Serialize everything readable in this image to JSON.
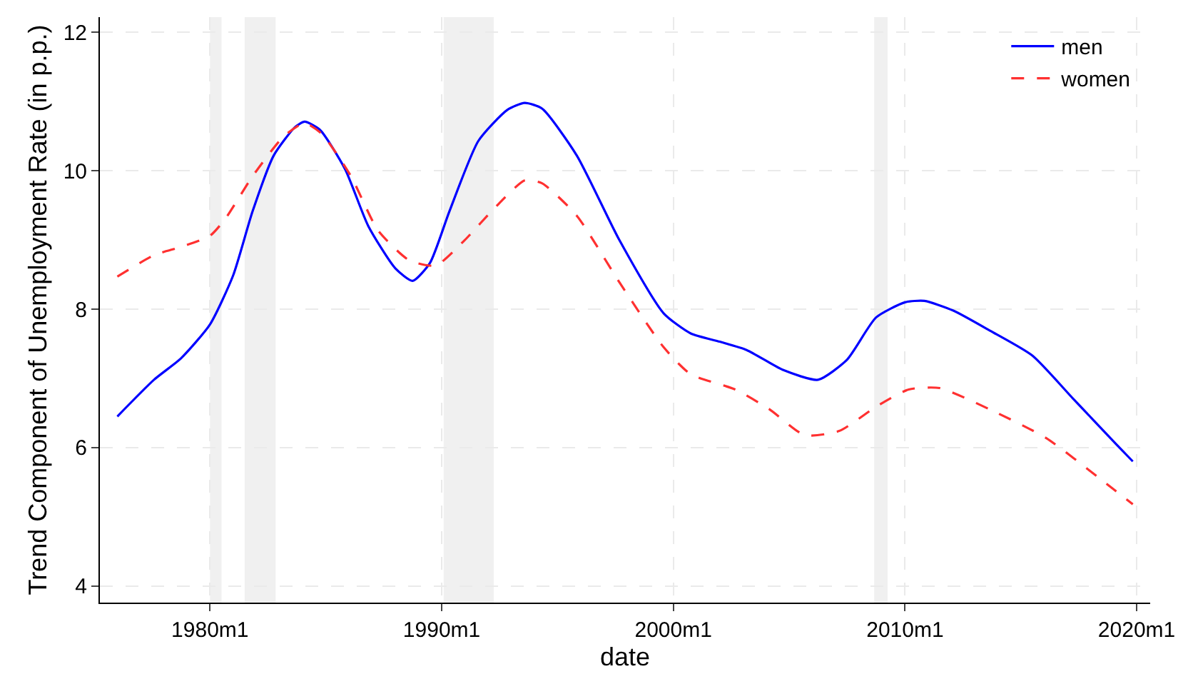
{
  "chart_data": {
    "type": "line",
    "xlabel": "date",
    "ylabel": "Trend Component of Unemployment Rate (in p.p.)",
    "xlim": [
      "1975-04",
      "2020-08"
    ],
    "ylim": [
      3.76,
      12.22
    ],
    "xticks": [
      {
        "value": "1980-01",
        "label": "1980m1"
      },
      {
        "value": "1990-01",
        "label": "1990m1"
      },
      {
        "value": "2000-01",
        "label": "2000m1"
      },
      {
        "value": "2010-01",
        "label": "2010m1"
      },
      {
        "value": "2020-01",
        "label": "2020m1"
      }
    ],
    "yticks": [
      4,
      6,
      8,
      10,
      12
    ],
    "grid": true,
    "legend": "top right",
    "marker": "none",
    "bands": [
      {
        "axis": "x",
        "from": "1980-01",
        "to": "1980-07",
        "color": "#f0f0f0"
      },
      {
        "axis": "x",
        "from": "1981-07",
        "to": "1982-11",
        "color": "#f0f0f0"
      },
      {
        "axis": "x",
        "from": "1990-02",
        "to": "1992-04",
        "color": "#f0f0f0"
      },
      {
        "axis": "x",
        "from": "2008-09",
        "to": "2009-04",
        "color": "#f0f0f0"
      }
    ],
    "series": [
      {
        "name": "men",
        "color": "#0000ff",
        "line_style": "solid",
        "x": [
          "1976-01",
          "1977-08",
          "1978-10",
          "1980-01",
          "1981-01",
          "1981-11",
          "1982-10",
          "1983-09",
          "1984-02",
          "1984-10",
          "1985-11",
          "1986-11",
          "1988-01",
          "1988-10",
          "1989-07",
          "1990-05",
          "1991-08",
          "1992-11",
          "1993-08",
          "1994-05",
          "1995-11",
          "1997-09",
          "1999-08",
          "2000-10",
          "2002-01",
          "2003-03",
          "2004-10",
          "2006-04",
          "2007-07",
          "2008-10",
          "2010-01",
          "2010-11",
          "2012-02",
          "2013-09",
          "2015-07",
          "2017-04",
          "2019-02",
          "2019-11"
        ],
        "values": [
          6.45,
          6.98,
          7.29,
          7.78,
          8.49,
          9.41,
          10.22,
          10.63,
          10.71,
          10.59,
          10.02,
          9.2,
          8.59,
          8.41,
          8.67,
          9.41,
          10.43,
          10.88,
          10.98,
          10.9,
          10.22,
          9.0,
          7.94,
          7.65,
          7.53,
          7.41,
          7.12,
          6.98,
          7.27,
          7.88,
          8.1,
          8.12,
          7.98,
          7.69,
          7.33,
          6.71,
          6.06,
          5.8
        ]
      },
      {
        "name": "women",
        "color": "#ff3030",
        "line_style": "dashed",
        "x": [
          "1976-01",
          "1977-08",
          "1978-10",
          "1980-01",
          "1980-09",
          "1981-11",
          "1983-03",
          "1984-02",
          "1984-11",
          "1986-02",
          "1987-04",
          "1988-08",
          "1989-10",
          "1991-01",
          "1992-04",
          "1993-08",
          "1994-05",
          "1995-11",
          "1997-09",
          "1999-08",
          "2000-10",
          "2002-09",
          "2004-03",
          "2005-09",
          "2007-03",
          "2008-10",
          "2010-03",
          "2011-07",
          "2013-09",
          "2016-02",
          "2018-07",
          "2019-11"
        ],
        "values": [
          8.47,
          8.78,
          8.9,
          9.06,
          9.31,
          9.92,
          10.49,
          10.69,
          10.53,
          9.92,
          9.14,
          8.71,
          8.63,
          9.0,
          9.45,
          9.86,
          9.82,
          9.35,
          8.39,
          7.45,
          7.06,
          6.84,
          6.55,
          6.18,
          6.24,
          6.59,
          6.84,
          6.86,
          6.55,
          6.14,
          5.53,
          5.18
        ]
      }
    ]
  }
}
